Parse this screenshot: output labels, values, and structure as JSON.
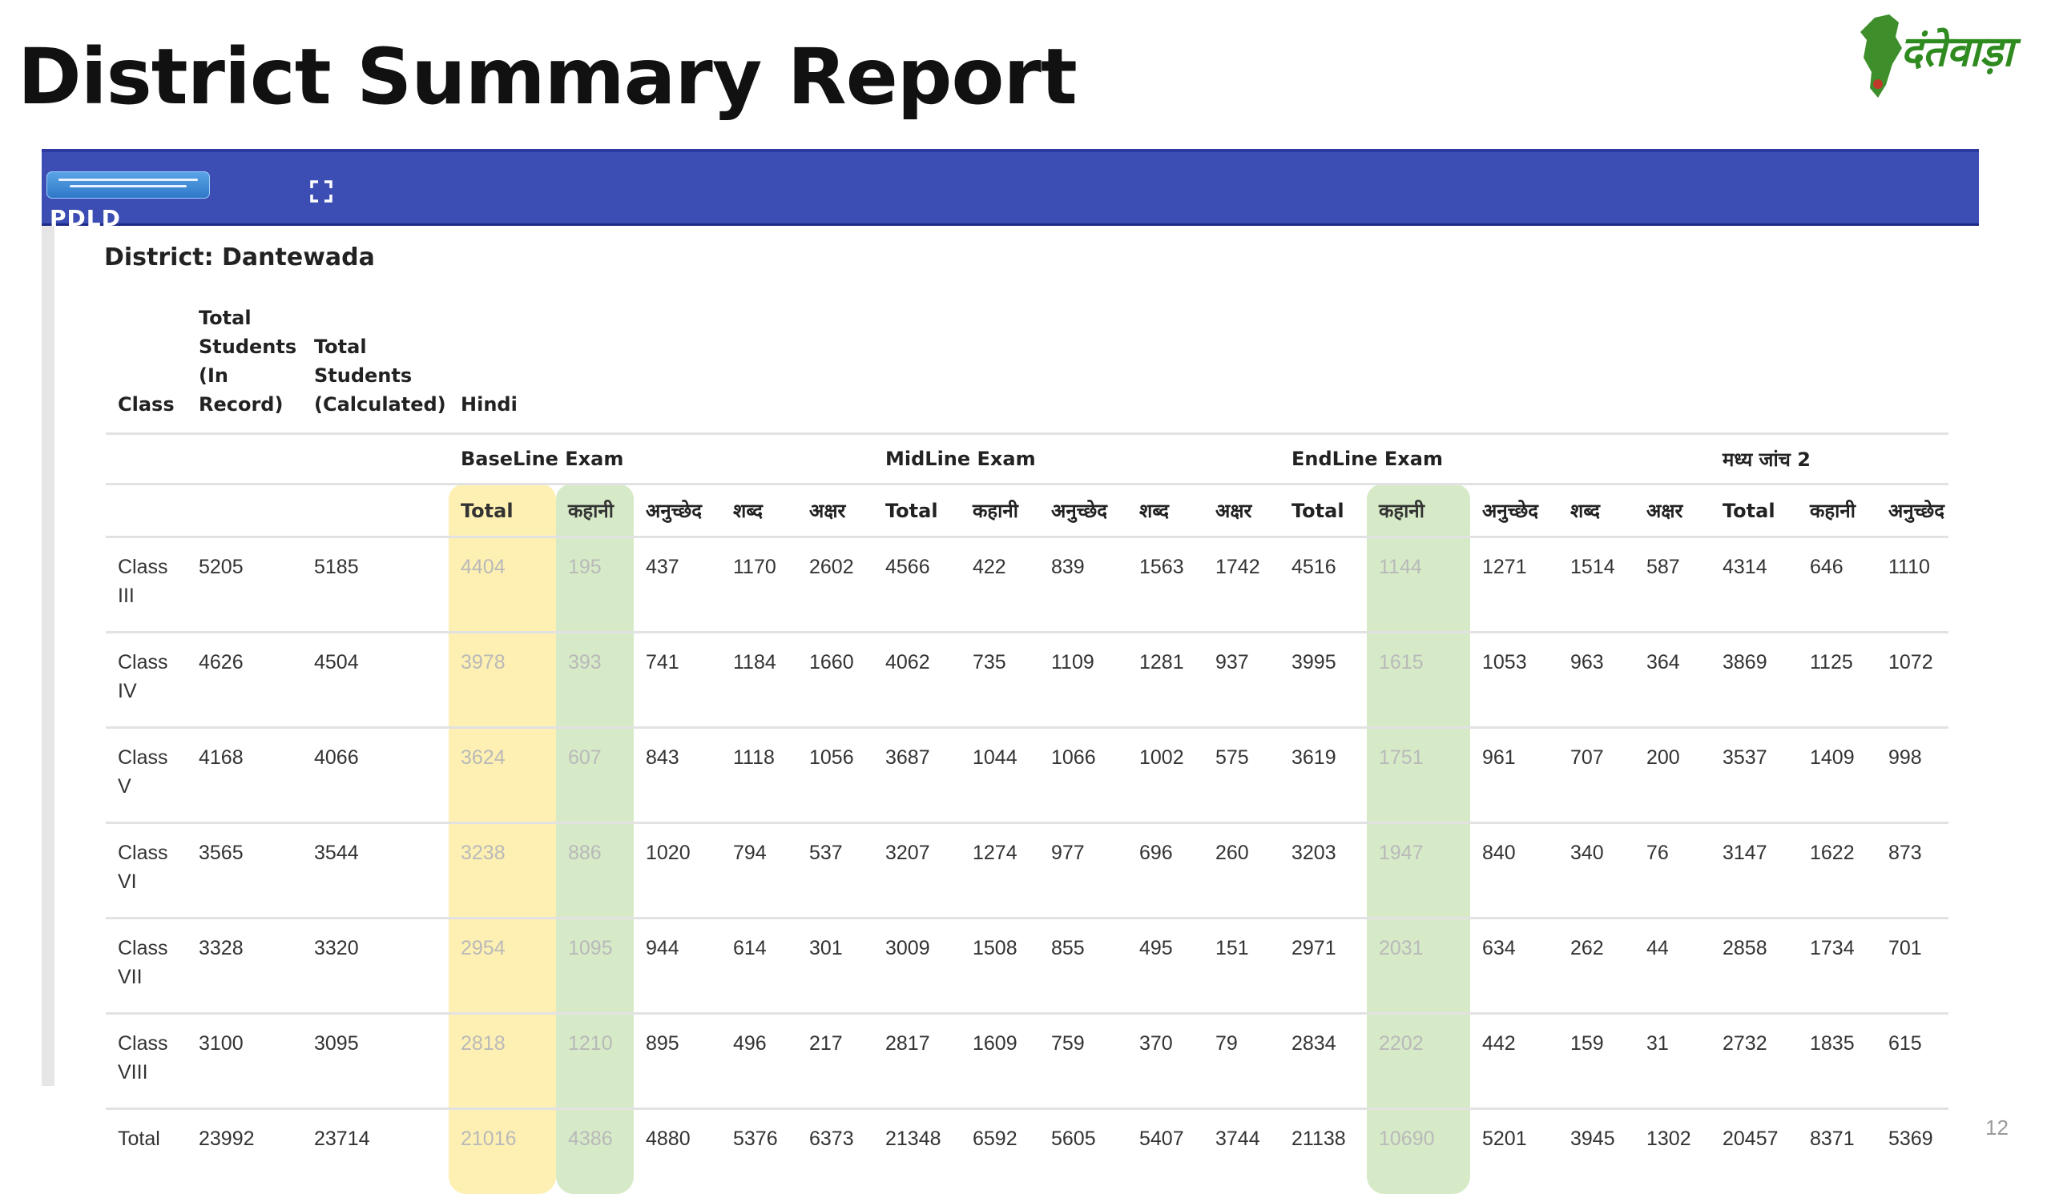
{
  "slide": {
    "title": "District Summary Report",
    "logo_text": "दंतेवाड़ा",
    "page_number": "12"
  },
  "app": {
    "name": "PDLD",
    "logo_icon": "hindi-banner-logo",
    "toolbar_icon": "fullscreen-icon",
    "bar_color": "#3c4db3"
  },
  "report": {
    "district_label": "District: Dantewada",
    "headers": {
      "class": "Class",
      "total_record": "Total Students (In Record)",
      "total_calculated": "Total Students (Calculated)",
      "subject": "Hindi"
    },
    "exams": [
      "BaseLine Exam",
      "MidLine Exam",
      "EndLine Exam",
      "मध्य जांच 2"
    ],
    "subheaders": [
      "Total",
      "कहानी",
      "अनुच्छेद",
      "शब्द",
      "अक्षर",
      "Total",
      "कहानी",
      "अनुच्छेद",
      "शब्द",
      "अक्षर",
      "Total",
      "कहानी",
      "अनुच्छेद",
      "शब्द",
      "अक्षर",
      "Total",
      "कहानी",
      "अनुच्छेद"
    ],
    "highlight_colors": {
      "baseline_total": "#fdf0b2",
      "kahani": "#d6eac8"
    },
    "rows": [
      [
        "Class III",
        "5205",
        "5185",
        "4404",
        "195",
        "437",
        "1170",
        "2602",
        "4566",
        "422",
        "839",
        "1563",
        "1742",
        "4516",
        "1144",
        "1271",
        "1514",
        "587",
        "4314",
        "646",
        "1110"
      ],
      [
        "Class IV",
        "4626",
        "4504",
        "3978",
        "393",
        "741",
        "1184",
        "1660",
        "4062",
        "735",
        "1109",
        "1281",
        "937",
        "3995",
        "1615",
        "1053",
        "963",
        "364",
        "3869",
        "1125",
        "1072"
      ],
      [
        "Class V",
        "4168",
        "4066",
        "3624",
        "607",
        "843",
        "1118",
        "1056",
        "3687",
        "1044",
        "1066",
        "1002",
        "575",
        "3619",
        "1751",
        "961",
        "707",
        "200",
        "3537",
        "1409",
        "998"
      ],
      [
        "Class VI",
        "3565",
        "3544",
        "3238",
        "886",
        "1020",
        "794",
        "537",
        "3207",
        "1274",
        "977",
        "696",
        "260",
        "3203",
        "1947",
        "840",
        "340",
        "76",
        "3147",
        "1622",
        "873"
      ],
      [
        "Class VII",
        "3328",
        "3320",
        "2954",
        "1095",
        "944",
        "614",
        "301",
        "3009",
        "1508",
        "855",
        "495",
        "151",
        "2971",
        "2031",
        "634",
        "262",
        "44",
        "2858",
        "1734",
        "701"
      ],
      [
        "Class VIII",
        "3100",
        "3095",
        "2818",
        "1210",
        "895",
        "496",
        "217",
        "2817",
        "1609",
        "759",
        "370",
        "79",
        "2834",
        "2202",
        "442",
        "159",
        "31",
        "2732",
        "1835",
        "615"
      ],
      [
        "Total",
        "23992",
        "23714",
        "21016",
        "4386",
        "4880",
        "5376",
        "6373",
        "21348",
        "6592",
        "5605",
        "5407",
        "3744",
        "21138",
        "10690",
        "5201",
        "3945",
        "1302",
        "20457",
        "8371",
        "5369"
      ]
    ]
  }
}
